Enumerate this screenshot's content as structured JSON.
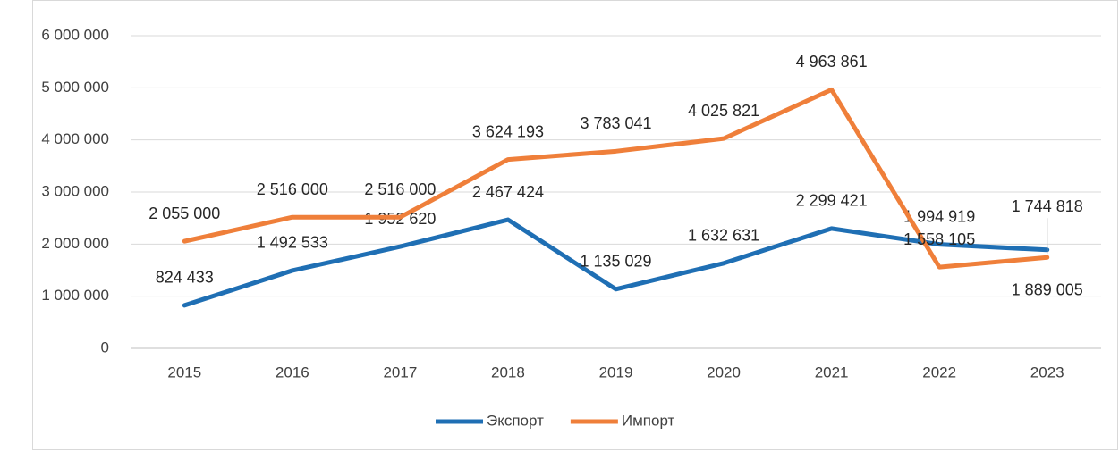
{
  "chart_data": {
    "type": "line",
    "categories": [
      "2015",
      "2016",
      "2017",
      "2018",
      "2019",
      "2020",
      "2021",
      "2022",
      "2023"
    ],
    "series": [
      {
        "name": "Экспорт",
        "color": "#1f6fb4",
        "values": [
          824433,
          1492533,
          1952620,
          2467424,
          1135029,
          1632631,
          2299421,
          1994919,
          1889005
        ],
        "value_labels": [
          "824 433",
          "1 492 533",
          "1 952 620",
          "2 467 424",
          "1 135 029",
          "1 632 631",
          "2 299 421",
          "1 994 919",
          "1 889 005"
        ]
      },
      {
        "name": "Импорт",
        "color": "#ef7f3a",
        "values": [
          2055000,
          2516000,
          2516000,
          3624193,
          3783041,
          4025821,
          4963861,
          1558105,
          1744818
        ],
        "value_labels": [
          "2 055 000",
          "2 516 000",
          "2 516 000",
          "3 624 193",
          "3 783 041",
          "4 025 821",
          "4 963 861",
          "1 558 105",
          "1 744 818"
        ]
      }
    ],
    "ylim": [
      0,
      6000000
    ],
    "yticks": [
      0,
      {
        "value": 1000000,
        "label": "1 000 000"
      },
      {
        "value": 2000000,
        "label": "2 000 000"
      },
      {
        "value": 3000000,
        "label": "3 000 000"
      },
      {
        "value": 4000000,
        "label": "4 000 000"
      },
      {
        "value": 5000000,
        "label": "5 000 000"
      },
      {
        "value": 6000000,
        "label": "6 000 000"
      }
    ],
    "grid": true,
    "legend": "bottom"
  }
}
